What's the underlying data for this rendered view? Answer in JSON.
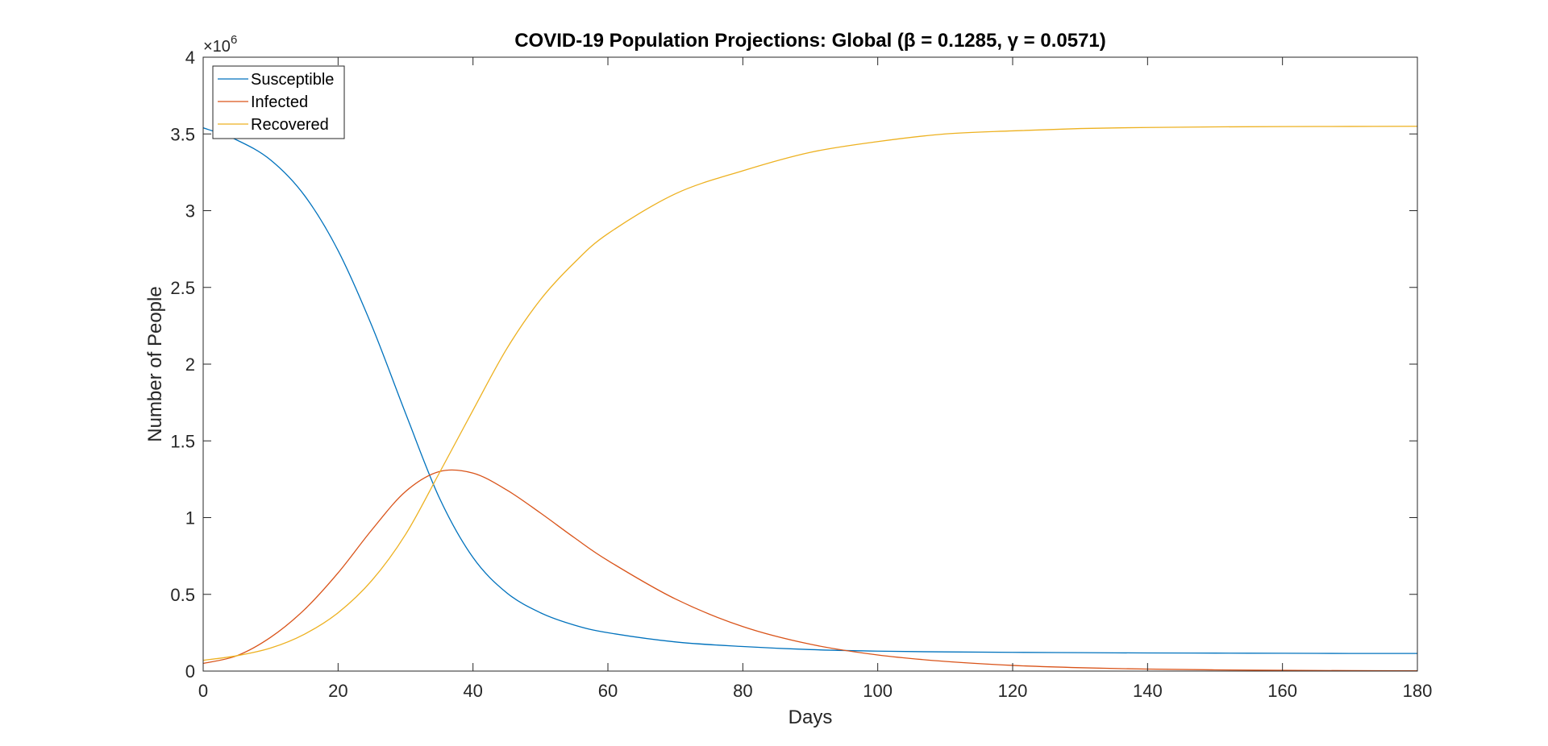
{
  "chart_data": {
    "type": "line",
    "title": "COVID-19 Population Projections: Global (β = 0.1285, γ = 0.0571)",
    "xlabel": "Days",
    "ylabel": "Number of People",
    "y_exponent_base": "×10",
    "y_exponent_power": "6",
    "xlim": [
      0,
      180
    ],
    "ylim": [
      0,
      4000000
    ],
    "x_ticks": [
      0,
      20,
      40,
      60,
      80,
      100,
      120,
      140,
      160,
      180
    ],
    "x_tick_labels": [
      "0",
      "20",
      "40",
      "60",
      "80",
      "100",
      "120",
      "140",
      "160",
      "180"
    ],
    "y_ticks": [
      0,
      500000,
      1000000,
      1500000,
      2000000,
      2500000,
      3000000,
      3500000,
      4000000
    ],
    "y_tick_labels": [
      "0",
      "0.5",
      "1",
      "1.5",
      "2",
      "2.5",
      "3",
      "3.5",
      "4"
    ],
    "grid": false,
    "legend_position": "top-left",
    "x": [
      0,
      5,
      10,
      15,
      20,
      25,
      30,
      35,
      40,
      45,
      50,
      55,
      60,
      70,
      80,
      90,
      100,
      110,
      120,
      130,
      140,
      150,
      160,
      170,
      180
    ],
    "series": [
      {
        "name": "Susceptible",
        "color": "#0072BD",
        "values": [
          3540000,
          3460000,
          3330000,
          3100000,
          2740000,
          2250000,
          1680000,
          1130000,
          740000,
          510000,
          380000,
          300000,
          250000,
          190000,
          160000,
          140000,
          130000,
          125000,
          122000,
          120000,
          118000,
          117000,
          116000,
          115000,
          115000
        ]
      },
      {
        "name": "Infected",
        "color": "#D95319",
        "values": [
          50000,
          100000,
          220000,
          400000,
          640000,
          920000,
          1170000,
          1300000,
          1290000,
          1180000,
          1030000,
          870000,
          720000,
          470000,
          290000,
          175000,
          105000,
          63000,
          37000,
          22000,
          13000,
          8000,
          5000,
          3000,
          2000
        ]
      },
      {
        "name": "Recovered",
        "color": "#EDB120",
        "values": [
          70000,
          100000,
          150000,
          240000,
          380000,
          590000,
          890000,
          1290000,
          1700000,
          2100000,
          2420000,
          2660000,
          2850000,
          3110000,
          3260000,
          3380000,
          3450000,
          3500000,
          3520000,
          3535000,
          3542000,
          3546000,
          3548000,
          3549000,
          3550000
        ]
      }
    ]
  }
}
